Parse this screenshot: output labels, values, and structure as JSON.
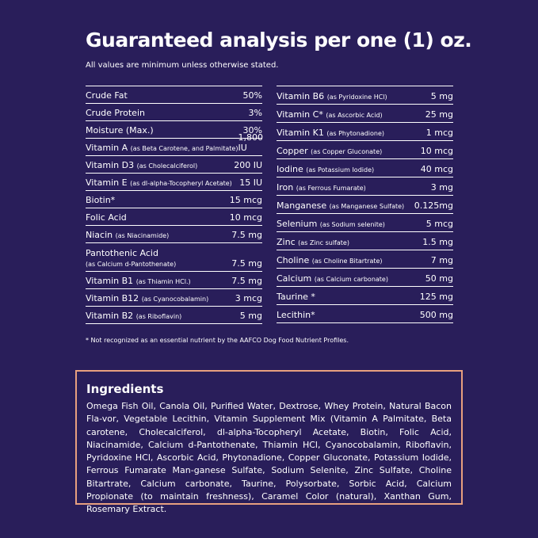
{
  "header": {
    "title": "Guaranteed analysis per one (1) oz.",
    "subtitle": "All values are minimum unless otherwise stated."
  },
  "table": {
    "left": [
      {
        "name": "Crude Fat",
        "note": "",
        "value": "50%"
      },
      {
        "name": "Crude Protein",
        "note": "",
        "value": "3%"
      },
      {
        "name": "Moisture (Max.)",
        "note": "",
        "value": "30%"
      },
      {
        "name": "Vitamin A",
        "note": "(as Beta Carotene, and Palmitate)",
        "value": "1,800 IU"
      },
      {
        "name": "Vitamin D3",
        "note": "(as Cholecalciferol)",
        "value": "200 IU"
      },
      {
        "name": "Vitamin E",
        "note": "(as dl-alpha-Tocopheryl Acetate)",
        "value": "15 IU"
      },
      {
        "name": "Biotin*",
        "note": "",
        "value": "15 mcg"
      },
      {
        "name": "Folic Acid",
        "note": "",
        "value": "10 mcg"
      },
      {
        "name": "Niacin",
        "note": "(as Niacinamide)",
        "value": "7.5 mg"
      },
      {
        "name": "Pantothenic Acid",
        "note": "(as Calcium d-Pantothenate)",
        "value": "7.5 mg"
      },
      {
        "name": "Vitamin B1",
        "note": "(as Thiamin HCl.)",
        "value": "7.5 mg"
      },
      {
        "name": "Vitamin B12",
        "note": "(as Cyanocobalamin)",
        "value": "3 mcg"
      },
      {
        "name": "Vitamin B2",
        "note": "(as Riboflavin)",
        "value": "5 mg"
      }
    ],
    "right": [
      {
        "name": "Vitamin B6",
        "note": "(as Pyridoxine HCl)",
        "value": "5 mg"
      },
      {
        "name": "Vitamin C*",
        "note": "(as Ascorbic Acid)",
        "value": "25 mg"
      },
      {
        "name": "Vitamin K1",
        "note": "(as Phytonadione)",
        "value": "1 mcg"
      },
      {
        "name": "Copper",
        "note": "(as Copper Gluconate)",
        "value": "10 mcg"
      },
      {
        "name": "Iodine",
        "note": "(as Potassium Iodide)",
        "value": "40 mcg"
      },
      {
        "name": "Iron",
        "note": "(as Ferrous Fumarate)",
        "value": "3 mg"
      },
      {
        "name": "Manganese",
        "note": "(as Manganese Sulfate)",
        "value": "0.125mg"
      },
      {
        "name": "Selenium",
        "note": "(as Sodium selenite)",
        "value": "5 mcg"
      },
      {
        "name": "Zinc",
        "note": "(as Zinc sulfate)",
        "value": "1.5 mg"
      },
      {
        "name": "Choline",
        "note": "(as Choline Bitartrate)",
        "value": "7 mg"
      },
      {
        "name": "Calcium",
        "note": "(as Calcium carbonate)",
        "value": "50 mg"
      },
      {
        "name": "Taurine *",
        "note": "",
        "value": "125 mg"
      },
      {
        "name": "Lecithin*",
        "note": "",
        "value": "500 mg"
      }
    ]
  },
  "footnote": "* Not recognized as an essential nutrient by the AAFCO Dog Food Nutrient Profiles.",
  "ingredients": {
    "title": "Ingredients",
    "text": "Omega Fish Oil, Canola Oil, Purified Water, Dextrose, Whey Protein, Natural Bacon Fla-vor, Vegetable Lecithin, Vitamin Supplement Mix (Vitamin A Palmitate, Beta carotene, Cholecalciferol, dl-alpha-Tocopheryl Acetate, Biotin, Folic Acid, Niacinamide, Calcium d-Pantothenate, Thiamin HCl, Cyanocobalamin, Riboflavin, Pyridoxine HCl, Ascorbic Acid, Phytonadione, Copper Gluconate, Potassium Iodide, Ferrous Fumarate Man-ganese Sulfate, Sodium Selenite, Zinc Sulfate, Choline Bitartrate, Calcium carbonate, Taurine, Polysorbate, Sorbic Acid, Calcium Propionate (to maintain freshness), Caramel Color (natural), Xanthan Gum, Rosemary Extract."
  }
}
